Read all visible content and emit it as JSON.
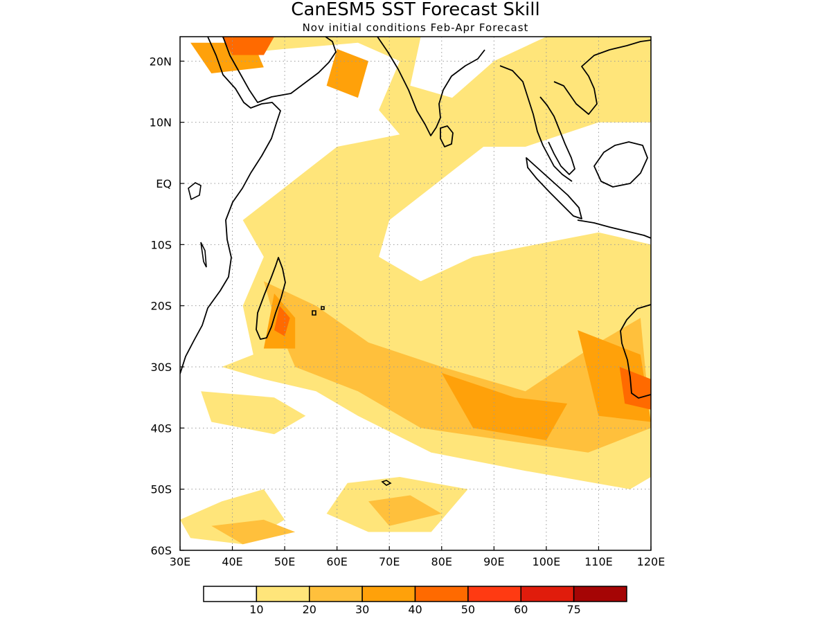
{
  "title": "CanESM5 SST Forecast Skill",
  "subtitle": "Nov initial conditions  Feb-Apr Forecast",
  "map": {
    "region": "Indian Ocean",
    "lon_range": [
      30,
      120
    ],
    "lat_range": [
      -60,
      24
    ],
    "lon_ticks": [
      {
        "value": 30,
        "label": "30E"
      },
      {
        "value": 40,
        "label": "40E"
      },
      {
        "value": 50,
        "label": "50E"
      },
      {
        "value": 60,
        "label": "60E"
      },
      {
        "value": 70,
        "label": "70E"
      },
      {
        "value": 80,
        "label": "80E"
      },
      {
        "value": 90,
        "label": "90E"
      },
      {
        "value": 100,
        "label": "100E"
      },
      {
        "value": 110,
        "label": "110E"
      },
      {
        "value": 120,
        "label": "120E"
      }
    ],
    "lat_ticks": [
      {
        "value": 20,
        "label": "20N"
      },
      {
        "value": 10,
        "label": "10N"
      },
      {
        "value": 0,
        "label": "EQ"
      },
      {
        "value": -10,
        "label": "10S"
      },
      {
        "value": -20,
        "label": "20S"
      },
      {
        "value": -30,
        "label": "30S"
      },
      {
        "value": -40,
        "label": "40S"
      },
      {
        "value": -50,
        "label": "50S"
      },
      {
        "value": -60,
        "label": "60S"
      }
    ],
    "grid": true
  },
  "colorbar": {
    "colors": [
      "#ffffff",
      "#ffe57a",
      "#ffc03c",
      "#ffa10a",
      "#ff6a00",
      "#ff3a12",
      "#e01c0c",
      "#a50505"
    ],
    "labels": [
      "10",
      "20",
      "30",
      "40",
      "50",
      "60",
      "75"
    ]
  },
  "skill_regions": [
    {
      "level": 1,
      "lon": [
        [
          30,
          -55
        ],
        [
          38,
          -52
        ],
        [
          46,
          -50
        ],
        [
          50,
          -55
        ],
        [
          42,
          -59
        ],
        [
          32,
          -58
        ]
      ]
    },
    {
      "level": 2,
      "lon": [
        [
          36,
          -56
        ],
        [
          46,
          -55
        ],
        [
          52,
          -57
        ],
        [
          42,
          -59
        ]
      ]
    },
    {
      "level": 1,
      "lon": [
        [
          62,
          -49
        ],
        [
          72,
          -48
        ],
        [
          85,
          -50
        ],
        [
          78,
          -57
        ],
        [
          66,
          -57
        ],
        [
          58,
          -54
        ]
      ]
    },
    {
      "level": 2,
      "lon": [
        [
          66,
          -52
        ],
        [
          74,
          -51
        ],
        [
          80,
          -54
        ],
        [
          70,
          -56
        ]
      ]
    },
    {
      "level": 1,
      "lon": [
        [
          34,
          -34
        ],
        [
          48,
          -35
        ],
        [
          54,
          -38
        ],
        [
          48,
          -41
        ],
        [
          36,
          -39
        ]
      ]
    },
    {
      "level": 1,
      "lon": [
        [
          38,
          21
        ],
        [
          50,
          22
        ],
        [
          64,
          23
        ],
        [
          72,
          20
        ],
        [
          68,
          12
        ],
        [
          72,
          8
        ],
        [
          60,
          6
        ],
        [
          48,
          -2
        ],
        [
          42,
          -6
        ],
        [
          46,
          -12
        ],
        [
          42,
          -20
        ],
        [
          44,
          -28
        ],
        [
          38,
          -30
        ],
        [
          46,
          -32
        ],
        [
          56,
          -34
        ],
        [
          64,
          -38
        ],
        [
          78,
          -44
        ],
        [
          96,
          -47
        ],
        [
          116,
          -50
        ],
        [
          120,
          -48
        ],
        [
          120,
          -10
        ],
        [
          110,
          -8
        ],
        [
          98,
          -10
        ],
        [
          86,
          -12
        ],
        [
          76,
          -16
        ],
        [
          68,
          -12
        ],
        [
          70,
          -6
        ],
        [
          82,
          2
        ],
        [
          88,
          6
        ],
        [
          96,
          6
        ],
        [
          110,
          10
        ],
        [
          120,
          10
        ],
        [
          120,
          24
        ],
        [
          100,
          24
        ],
        [
          90,
          20
        ],
        [
          82,
          14
        ],
        [
          74,
          16
        ],
        [
          76,
          24
        ],
        [
          40,
          24
        ]
      ]
    },
    {
      "level": 2,
      "lon": [
        [
          46,
          -16
        ],
        [
          56,
          -20
        ],
        [
          66,
          -26
        ],
        [
          80,
          -30
        ],
        [
          96,
          -34
        ],
        [
          110,
          -26
        ],
        [
          118,
          -22
        ],
        [
          120,
          -40
        ],
        [
          108,
          -44
        ],
        [
          92,
          -42
        ],
        [
          76,
          -40
        ],
        [
          64,
          -34
        ],
        [
          52,
          -30
        ],
        [
          48,
          -22
        ]
      ]
    },
    {
      "level": 3,
      "lon": [
        [
          48,
          -18
        ],
        [
          52,
          -22
        ],
        [
          52,
          -27
        ],
        [
          46,
          -27
        ]
      ]
    },
    {
      "level": 3,
      "lon": [
        [
          80,
          -31
        ],
        [
          94,
          -35
        ],
        [
          104,
          -36
        ],
        [
          100,
          -42
        ],
        [
          86,
          -40
        ]
      ]
    },
    {
      "level": 3,
      "lon": [
        [
          106,
          -24
        ],
        [
          118,
          -28
        ],
        [
          120,
          -39
        ],
        [
          110,
          -38
        ]
      ]
    },
    {
      "level": 3,
      "lon": [
        [
          32,
          23
        ],
        [
          44,
          23
        ],
        [
          46,
          19
        ],
        [
          36,
          18
        ]
      ]
    },
    {
      "level": 3,
      "lon": [
        [
          60,
          22
        ],
        [
          66,
          20
        ],
        [
          64,
          14
        ],
        [
          58,
          16
        ]
      ]
    },
    {
      "level": 4,
      "lon": [
        [
          49,
          -20
        ],
        [
          51,
          -22
        ],
        [
          50,
          -25
        ],
        [
          48,
          -24
        ]
      ]
    },
    {
      "level": 4,
      "lon": [
        [
          114,
          -30
        ],
        [
          120,
          -32
        ],
        [
          120,
          -37
        ],
        [
          115,
          -36
        ]
      ]
    },
    {
      "level": 4,
      "lon": [
        [
          38,
          24
        ],
        [
          48,
          24
        ],
        [
          46,
          21
        ],
        [
          40,
          21
        ]
      ]
    }
  ]
}
